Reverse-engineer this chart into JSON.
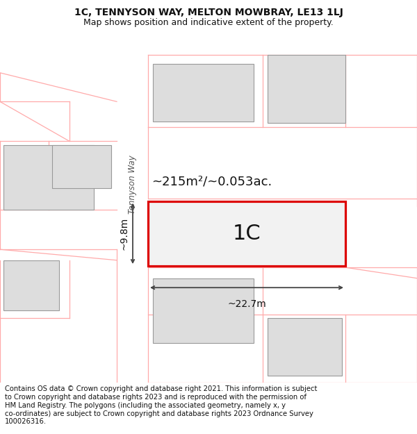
{
  "title": "1C, TENNYSON WAY, MELTON MOWBRAY, LE13 1LJ",
  "subtitle": "Map shows position and indicative extent of the property.",
  "footer_line1": "Contains OS data © Crown copyright and database right 2021. This information is subject",
  "footer_line2": "to Crown copyright and database rights 2023 and is reproduced with the permission of",
  "footer_line3": "HM Land Registry. The polygons (including the associated geometry, namely x, y",
  "footer_line4": "co-ordinates) are subject to Crown copyright and database rights 2023 Ordnance Survey",
  "footer_line5": "100026316.",
  "background_color": "#ffffff",
  "map_bg": "#f7f7f7",
  "highlight_label": "1C",
  "area_label": "~215m²/~0.053ac.",
  "width_label": "~22.7m",
  "height_label": "~9.8m",
  "street_label": "Tennyson Way",
  "plot_edge": "#dd0000",
  "boundary_color": "#ffaaaa",
  "building_fill": "#dddddd",
  "building_edge": "#999999"
}
